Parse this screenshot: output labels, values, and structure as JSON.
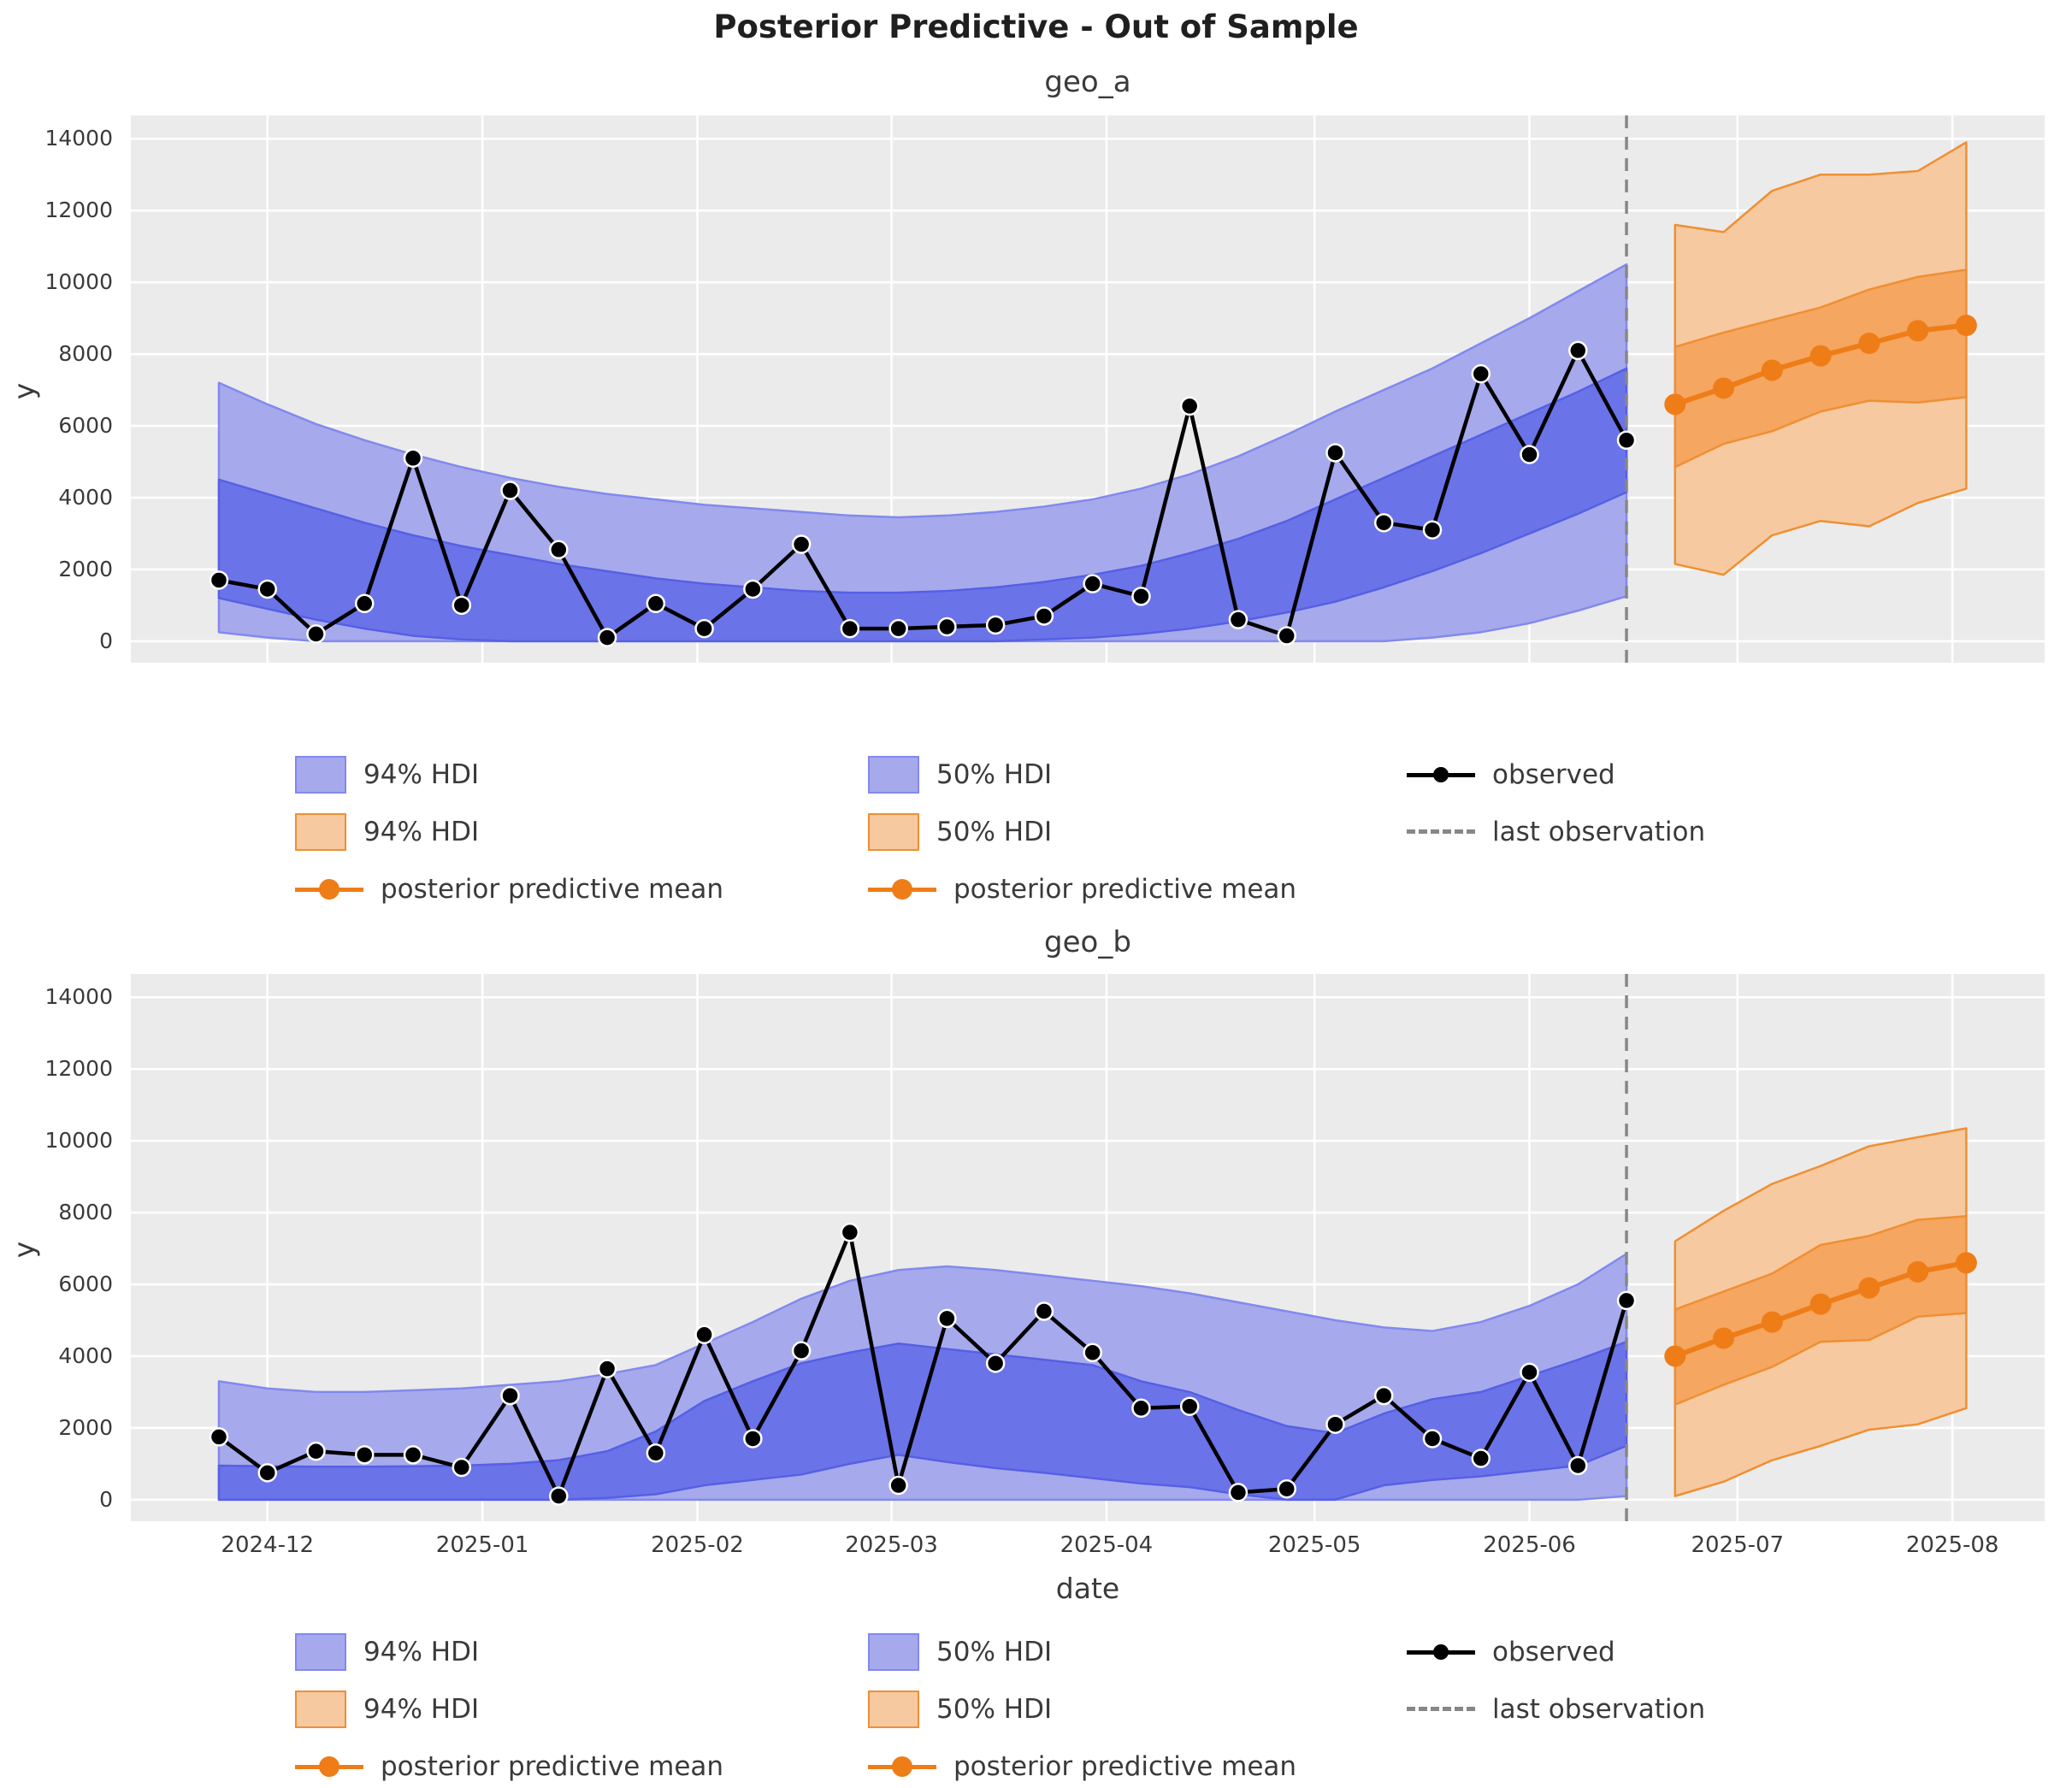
{
  "title": "Posterior Predictive - Out of Sample",
  "axis": {
    "y_label": "y",
    "x_label": "date",
    "y_ticks": [
      0,
      2000,
      4000,
      6000,
      8000,
      10000,
      12000,
      14000
    ],
    "x_tick_labels": [
      "2024-12",
      "2025-01",
      "2025-02",
      "2025-03",
      "2025-04",
      "2025-05",
      "2025-06",
      "2025-07",
      "2025-08"
    ],
    "x_tick_dates": [
      "2024-12-01",
      "2025-01-01",
      "2025-02-01",
      "2025-03-01",
      "2025-04-01",
      "2025-05-01",
      "2025-06-01",
      "2025-07-01",
      "2025-08-01"
    ]
  },
  "colors": {
    "background": "#ffffff",
    "axes_background": "#ebebeb",
    "grid": "#ffffff",
    "text": "#3a3a3a",
    "blue_hdi94": "#a6aaec",
    "blue_hdi94_edge": "#8289ee",
    "blue_hdi50": "#6b73e8",
    "blue_hdi50_edge": "#5560e5",
    "orange_hdi94": "#f7c9a0",
    "orange_hdi50": "#f5a660",
    "orange_edge": "#ef8f33",
    "orange_mean": "#ee7d18",
    "observed": "#000000",
    "last_observation": "#878787"
  },
  "legend": {
    "columns": [
      [
        {
          "swatch": "patch-blue",
          "label": "94% HDI"
        },
        {
          "swatch": "patch-orange",
          "label": "94% HDI"
        },
        {
          "swatch": "line-orange",
          "label": "posterior predictive mean"
        }
      ],
      [
        {
          "swatch": "patch-blue",
          "label": "50% HDI"
        },
        {
          "swatch": "patch-orange",
          "label": "50% HDI"
        },
        {
          "swatch": "line-orange",
          "label": "posterior predictive mean"
        }
      ],
      [
        {
          "swatch": "line-observed",
          "label": "observed"
        },
        {
          "swatch": "line-dashed",
          "label": "last observation"
        }
      ]
    ]
  },
  "chart_data": [
    {
      "type": "line",
      "title": "geo_a",
      "xlabel": "date",
      "ylabel": "y",
      "grid": true,
      "legend_position": "below",
      "ylim": [
        -600,
        14650
      ],
      "xlim_days": [
        -12.7,
        263.3
      ],
      "last_observation": "2025-06-15",
      "x_observed": [
        "2024-11-24",
        "2024-12-01",
        "2024-12-08",
        "2024-12-15",
        "2024-12-22",
        "2024-12-29",
        "2025-01-05",
        "2025-01-12",
        "2025-01-19",
        "2025-01-26",
        "2025-02-02",
        "2025-02-09",
        "2025-02-16",
        "2025-02-23",
        "2025-03-02",
        "2025-03-09",
        "2025-03-16",
        "2025-03-23",
        "2025-03-30",
        "2025-04-06",
        "2025-04-13",
        "2025-04-20",
        "2025-04-27",
        "2025-05-04",
        "2025-05-11",
        "2025-05-18",
        "2025-05-25",
        "2025-06-01",
        "2025-06-08",
        "2025-06-15"
      ],
      "observed": [
        1700,
        1450,
        200,
        1050,
        5100,
        1000,
        4200,
        2550,
        100,
        1050,
        350,
        1450,
        2700,
        350,
        350,
        400,
        450,
        700,
        1600,
        1250,
        6550,
        600,
        150,
        5250,
        3300,
        3100,
        7450,
        5200,
        8100,
        5600
      ],
      "insample_hdi94_upper": [
        7200,
        6600,
        6050,
        5600,
        5200,
        4850,
        4550,
        4300,
        4100,
        3950,
        3800,
        3700,
        3600,
        3500,
        3450,
        3500,
        3600,
        3750,
        3950,
        4250,
        4650,
        5150,
        5750,
        6400,
        7000,
        7600,
        8300,
        9000,
        9750,
        10500
      ],
      "insample_hdi94_lower": [
        250,
        100,
        0,
        0,
        0,
        0,
        0,
        0,
        0,
        0,
        0,
        0,
        0,
        0,
        0,
        0,
        0,
        0,
        0,
        0,
        0,
        0,
        0,
        0,
        0,
        100,
        250,
        500,
        850,
        1250
      ],
      "insample_hdi50_upper": [
        4500,
        4100,
        3700,
        3300,
        2950,
        2650,
        2400,
        2150,
        1950,
        1750,
        1600,
        1500,
        1400,
        1350,
        1350,
        1400,
        1500,
        1650,
        1850,
        2100,
        2450,
        2850,
        3350,
        3950,
        4550,
        5150,
        5750,
        6350,
        6950,
        7600
      ],
      "insample_hdi50_lower": [
        1200,
        900,
        600,
        350,
        150,
        50,
        0,
        0,
        0,
        0,
        0,
        0,
        0,
        0,
        0,
        0,
        0,
        50,
        100,
        200,
        350,
        550,
        800,
        1100,
        1500,
        1950,
        2450,
        3000,
        3550,
        4150
      ],
      "x_forecast": [
        "2025-06-22",
        "2025-06-29",
        "2025-07-06",
        "2025-07-13",
        "2025-07-20",
        "2025-07-27",
        "2025-08-03"
      ],
      "forecast_mean": [
        6600,
        7050,
        7550,
        7950,
        8300,
        8650,
        8800
      ],
      "forecast_hdi94_upper": [
        11600,
        11400,
        12550,
        13000,
        13000,
        13100,
        13900
      ],
      "forecast_hdi94_lower": [
        2150,
        1850,
        2950,
        3350,
        3200,
        3850,
        4250
      ],
      "forecast_hdi50_upper": [
        8200,
        8600,
        8950,
        9300,
        9800,
        10150,
        10350
      ],
      "forecast_hdi50_lower": [
        4850,
        5500,
        5850,
        6400,
        6700,
        6650,
        6800
      ]
    },
    {
      "type": "line",
      "title": "geo_b",
      "xlabel": "date",
      "ylabel": "y",
      "grid": true,
      "legend_position": "below",
      "ylim": [
        -600,
        14650
      ],
      "xlim_days": [
        -12.7,
        263.3
      ],
      "last_observation": "2025-06-15",
      "x_observed": [
        "2024-11-24",
        "2024-12-01",
        "2024-12-08",
        "2024-12-15",
        "2024-12-22",
        "2024-12-29",
        "2025-01-05",
        "2025-01-12",
        "2025-01-19",
        "2025-01-26",
        "2025-02-02",
        "2025-02-09",
        "2025-02-16",
        "2025-02-23",
        "2025-03-02",
        "2025-03-09",
        "2025-03-16",
        "2025-03-23",
        "2025-03-30",
        "2025-04-06",
        "2025-04-13",
        "2025-04-20",
        "2025-04-27",
        "2025-05-04",
        "2025-05-11",
        "2025-05-18",
        "2025-05-25",
        "2025-06-01",
        "2025-06-08",
        "2025-06-15"
      ],
      "observed": [
        1750,
        750,
        1350,
        1250,
        1250,
        900,
        2900,
        100,
        3650,
        1300,
        4600,
        1700,
        4150,
        7450,
        400,
        5050,
        3800,
        5250,
        4100,
        2550,
        2600,
        200,
        300,
        2100,
        2900,
        1700,
        1150,
        3550,
        950,
        5550
      ],
      "insample_hdi94_upper": [
        3300,
        3100,
        3000,
        3000,
        3050,
        3100,
        3200,
        3300,
        3500,
        3750,
        4350,
        4950,
        5600,
        6100,
        6400,
        6500,
        6400,
        6250,
        6100,
        5950,
        5750,
        5500,
        5250,
        5000,
        4800,
        4700,
        4950,
        5400,
        6000,
        6850
      ],
      "insample_hdi94_lower": [
        0,
        0,
        0,
        0,
        0,
        0,
        0,
        0,
        0,
        0,
        0,
        0,
        0,
        0,
        0,
        0,
        0,
        0,
        0,
        0,
        0,
        0,
        0,
        0,
        0,
        0,
        0,
        0,
        0,
        100
      ],
      "insample_hdi50_upper": [
        950,
        930,
        920,
        920,
        930,
        950,
        1000,
        1100,
        1350,
        1900,
        2750,
        3300,
        3800,
        4100,
        4350,
        4200,
        4050,
        3900,
        3750,
        3300,
        3000,
        2500,
        2050,
        1850,
        2400,
        2800,
        3000,
        3450,
        3900,
        4400
      ],
      "insample_hdi50_lower": [
        0,
        0,
        0,
        0,
        0,
        0,
        0,
        0,
        50,
        150,
        400,
        550,
        700,
        1000,
        1250,
        1050,
        880,
        750,
        600,
        450,
        350,
        150,
        0,
        0,
        400,
        550,
        650,
        800,
        950,
        1500
      ],
      "x_forecast": [
        "2025-06-22",
        "2025-06-29",
        "2025-07-06",
        "2025-07-13",
        "2025-07-20",
        "2025-07-27",
        "2025-08-03"
      ],
      "forecast_mean": [
        4000,
        4500,
        4950,
        5450,
        5900,
        6350,
        6600
      ],
      "forecast_hdi94_upper": [
        7200,
        8050,
        8800,
        9300,
        9850,
        10100,
        10350
      ],
      "forecast_hdi94_lower": [
        100,
        500,
        1100,
        1500,
        1950,
        2100,
        2550
      ],
      "forecast_hdi50_upper": [
        5300,
        5800,
        6300,
        7100,
        7350,
        7800,
        7900
      ],
      "forecast_hdi50_lower": [
        2650,
        3200,
        3700,
        4400,
        4450,
        5100,
        5200
      ]
    }
  ]
}
